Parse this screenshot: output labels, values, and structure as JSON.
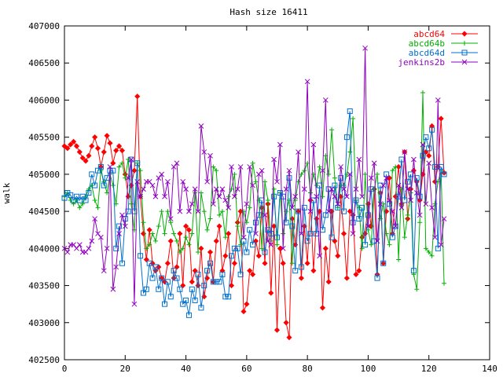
{
  "chart_data": {
    "type": "line",
    "title": "Hash size 16411",
    "xlabel": "",
    "ylabel": "walk",
    "xlim": [
      0,
      140
    ],
    "ylim": [
      402500,
      407000
    ],
    "x_ticks": [
      0,
      20,
      40,
      60,
      80,
      100,
      120,
      140
    ],
    "y_ticks": [
      402500,
      403000,
      403500,
      404000,
      404500,
      405000,
      405500,
      406000,
      406500,
      407000
    ],
    "grid": false,
    "legend": "top-right",
    "x_start": 0,
    "x_step": 1,
    "series": [
      {
        "name": "abcd64",
        "color": "#ff0000",
        "marker": "diamond",
        "values": [
          405380,
          405350,
          405400,
          405440,
          405380,
          405300,
          405220,
          405180,
          405250,
          405380,
          405500,
          405350,
          405100,
          405300,
          405520,
          405420,
          405150,
          405320,
          405380,
          405320,
          405000,
          404700,
          404850,
          405050,
          406050,
          404700,
          404200,
          403850,
          404250,
          403800,
          403700,
          403750,
          403600,
          403550,
          403800,
          404100,
          403600,
          403750,
          404200,
          403500,
          404300,
          404250,
          403550,
          403700,
          403500,
          404000,
          403350,
          403600,
          403950,
          403550,
          404100,
          404300,
          403700,
          403900,
          404200,
          403500,
          403800,
          404350,
          404500,
          403150,
          403250,
          403700,
          403650,
          404100,
          403900,
          404550,
          403800,
          404600,
          403400,
          404300,
          402900,
          404000,
          403800,
          403000,
          402800,
          404400,
          404050,
          404500,
          403600,
          404300,
          403800,
          404650,
          403700,
          404400,
          404500,
          403200,
          404000,
          403550,
          404500,
          404100,
          403900,
          404700,
          404200,
          403600,
          404500,
          404450,
          403650,
          403700,
          404150,
          404200,
          404600,
          404300,
          404800,
          403650,
          404750,
          403800,
          404500,
          404950,
          404200,
          404700,
          405100,
          404600,
          405300,
          404400,
          404800,
          405050,
          404900,
          404650,
          405000,
          405300,
          405250,
          405650,
          404900,
          405100,
          405750,
          405020
        ]
      },
      {
        "name": "abcd64b",
        "color": "#00b000",
        "marker": "plus",
        "values": [
          404700,
          404750,
          404650,
          404600,
          404650,
          404550,
          404600,
          404700,
          404800,
          404850,
          404650,
          404550,
          405050,
          404900,
          404750,
          405000,
          404850,
          404600,
          405100,
          405150,
          404950,
          405200,
          404600,
          404250,
          405150,
          405050,
          404350,
          404000,
          404050,
          404200,
          404100,
          404300,
          404500,
          404200,
          404500,
          404350,
          404200,
          404100,
          403950,
          404000,
          404150,
          404050,
          404200,
          404750,
          403950,
          404750,
          404500,
          404250,
          404400,
          405100,
          405050,
          404450,
          404500,
          404150,
          404700,
          404800,
          405000,
          404300,
          404050,
          404500,
          404350,
          404550,
          405150,
          404900,
          404650,
          404000,
          404900,
          404650,
          404100,
          404800,
          404050,
          404750,
          404200,
          404500,
          404650,
          403800,
          404650,
          404900,
          405000,
          405050,
          405150,
          404750,
          405000,
          404850,
          405100,
          404700,
          405250,
          405000,
          405600,
          404950,
          404550,
          404850,
          404850,
          405000,
          405300,
          405750,
          404650,
          404550,
          404000,
          405000,
          404250,
          404050,
          404800,
          405000,
          404400,
          404600,
          404200,
          404050,
          405050,
          405100,
          403850,
          404800,
          404150,
          404450,
          404750,
          403650,
          403450,
          404350,
          406100,
          404000,
          403950,
          403900,
          404600,
          404900,
          405050,
          403530
        ]
      },
      {
        "name": "abcd64d",
        "color": "#0070d0",
        "marker": "square",
        "values": [
          404680,
          404750,
          404720,
          404650,
          404700,
          404650,
          404700,
          404650,
          404750,
          405000,
          404850,
          405050,
          405100,
          404850,
          404950,
          405050,
          405050,
          404000,
          404300,
          403800,
          404400,
          404500,
          405200,
          404500,
          405150,
          403900,
          403400,
          403450,
          403800,
          403600,
          403750,
          403450,
          403600,
          403250,
          403550,
          403350,
          403700,
          403600,
          403450,
          403250,
          403300,
          403100,
          403450,
          403300,
          403650,
          403200,
          403500,
          403700,
          403800,
          403550,
          403550,
          403550,
          403650,
          403350,
          403350,
          403900,
          404000,
          404000,
          403650,
          404100,
          403950,
          404250,
          404050,
          404350,
          404450,
          404650,
          403950,
          404250,
          404200,
          404700,
          404150,
          404750,
          404700,
          404350,
          404950,
          404300,
          403700,
          404500,
          403750,
          404550,
          404100,
          404200,
          404650,
          404200,
          404850,
          404250,
          404450,
          404800,
          404150,
          404850,
          404550,
          404950,
          404500,
          405500,
          405850,
          404350,
          404650,
          404400,
          404550,
          404050,
          404450,
          404800,
          404100,
          403600,
          404850,
          403800,
          405000,
          404600,
          404150,
          404300,
          404700,
          405200,
          404650,
          404900,
          405000,
          403700,
          404950,
          404700,
          405250,
          405500,
          405350,
          405600,
          405100,
          404000,
          405100,
          405000
        ]
      },
      {
        "name": "jenkins2b",
        "color": "#9000c0",
        "marker": "cross",
        "values": [
          404000,
          403950,
          404050,
          404050,
          404000,
          404050,
          403950,
          403950,
          404000,
          404100,
          404400,
          404200,
          404150,
          403700,
          404000,
          405100,
          403450,
          403750,
          404200,
          404450,
          404300,
          404950,
          405200,
          403250,
          404900,
          404700,
          404800,
          404900,
          404900,
          404850,
          404700,
          404950,
          405000,
          404700,
          404900,
          404400,
          405100,
          405150,
          404500,
          404900,
          404800,
          404500,
          404600,
          404800,
          404500,
          405650,
          405300,
          404900,
          405250,
          404600,
          404800,
          404700,
          404800,
          404650,
          404550,
          405100,
          404700,
          404800,
          405100,
          404150,
          404600,
          405100,
          404850,
          404200,
          405000,
          405050,
          404450,
          404100,
          404050,
          405200,
          404900,
          405400,
          404000,
          404800,
          405050,
          404550,
          404700,
          405300,
          404200,
          404800,
          406250,
          404500,
          405400,
          404700,
          403900,
          405050,
          406000,
          404500,
          404800,
          404700,
          404600,
          405100,
          404800,
          404700,
          405000,
          404200,
          404800,
          405200,
          404700,
          406700,
          404300,
          404950,
          405150,
          404100,
          404600,
          404850,
          404950,
          404650,
          404500,
          404300,
          404850,
          404550,
          405300,
          404800,
          404650,
          405200,
          404750,
          404450,
          405400,
          404600,
          405150,
          404550,
          404150,
          406000,
          404050,
          404400
        ]
      }
    ]
  }
}
